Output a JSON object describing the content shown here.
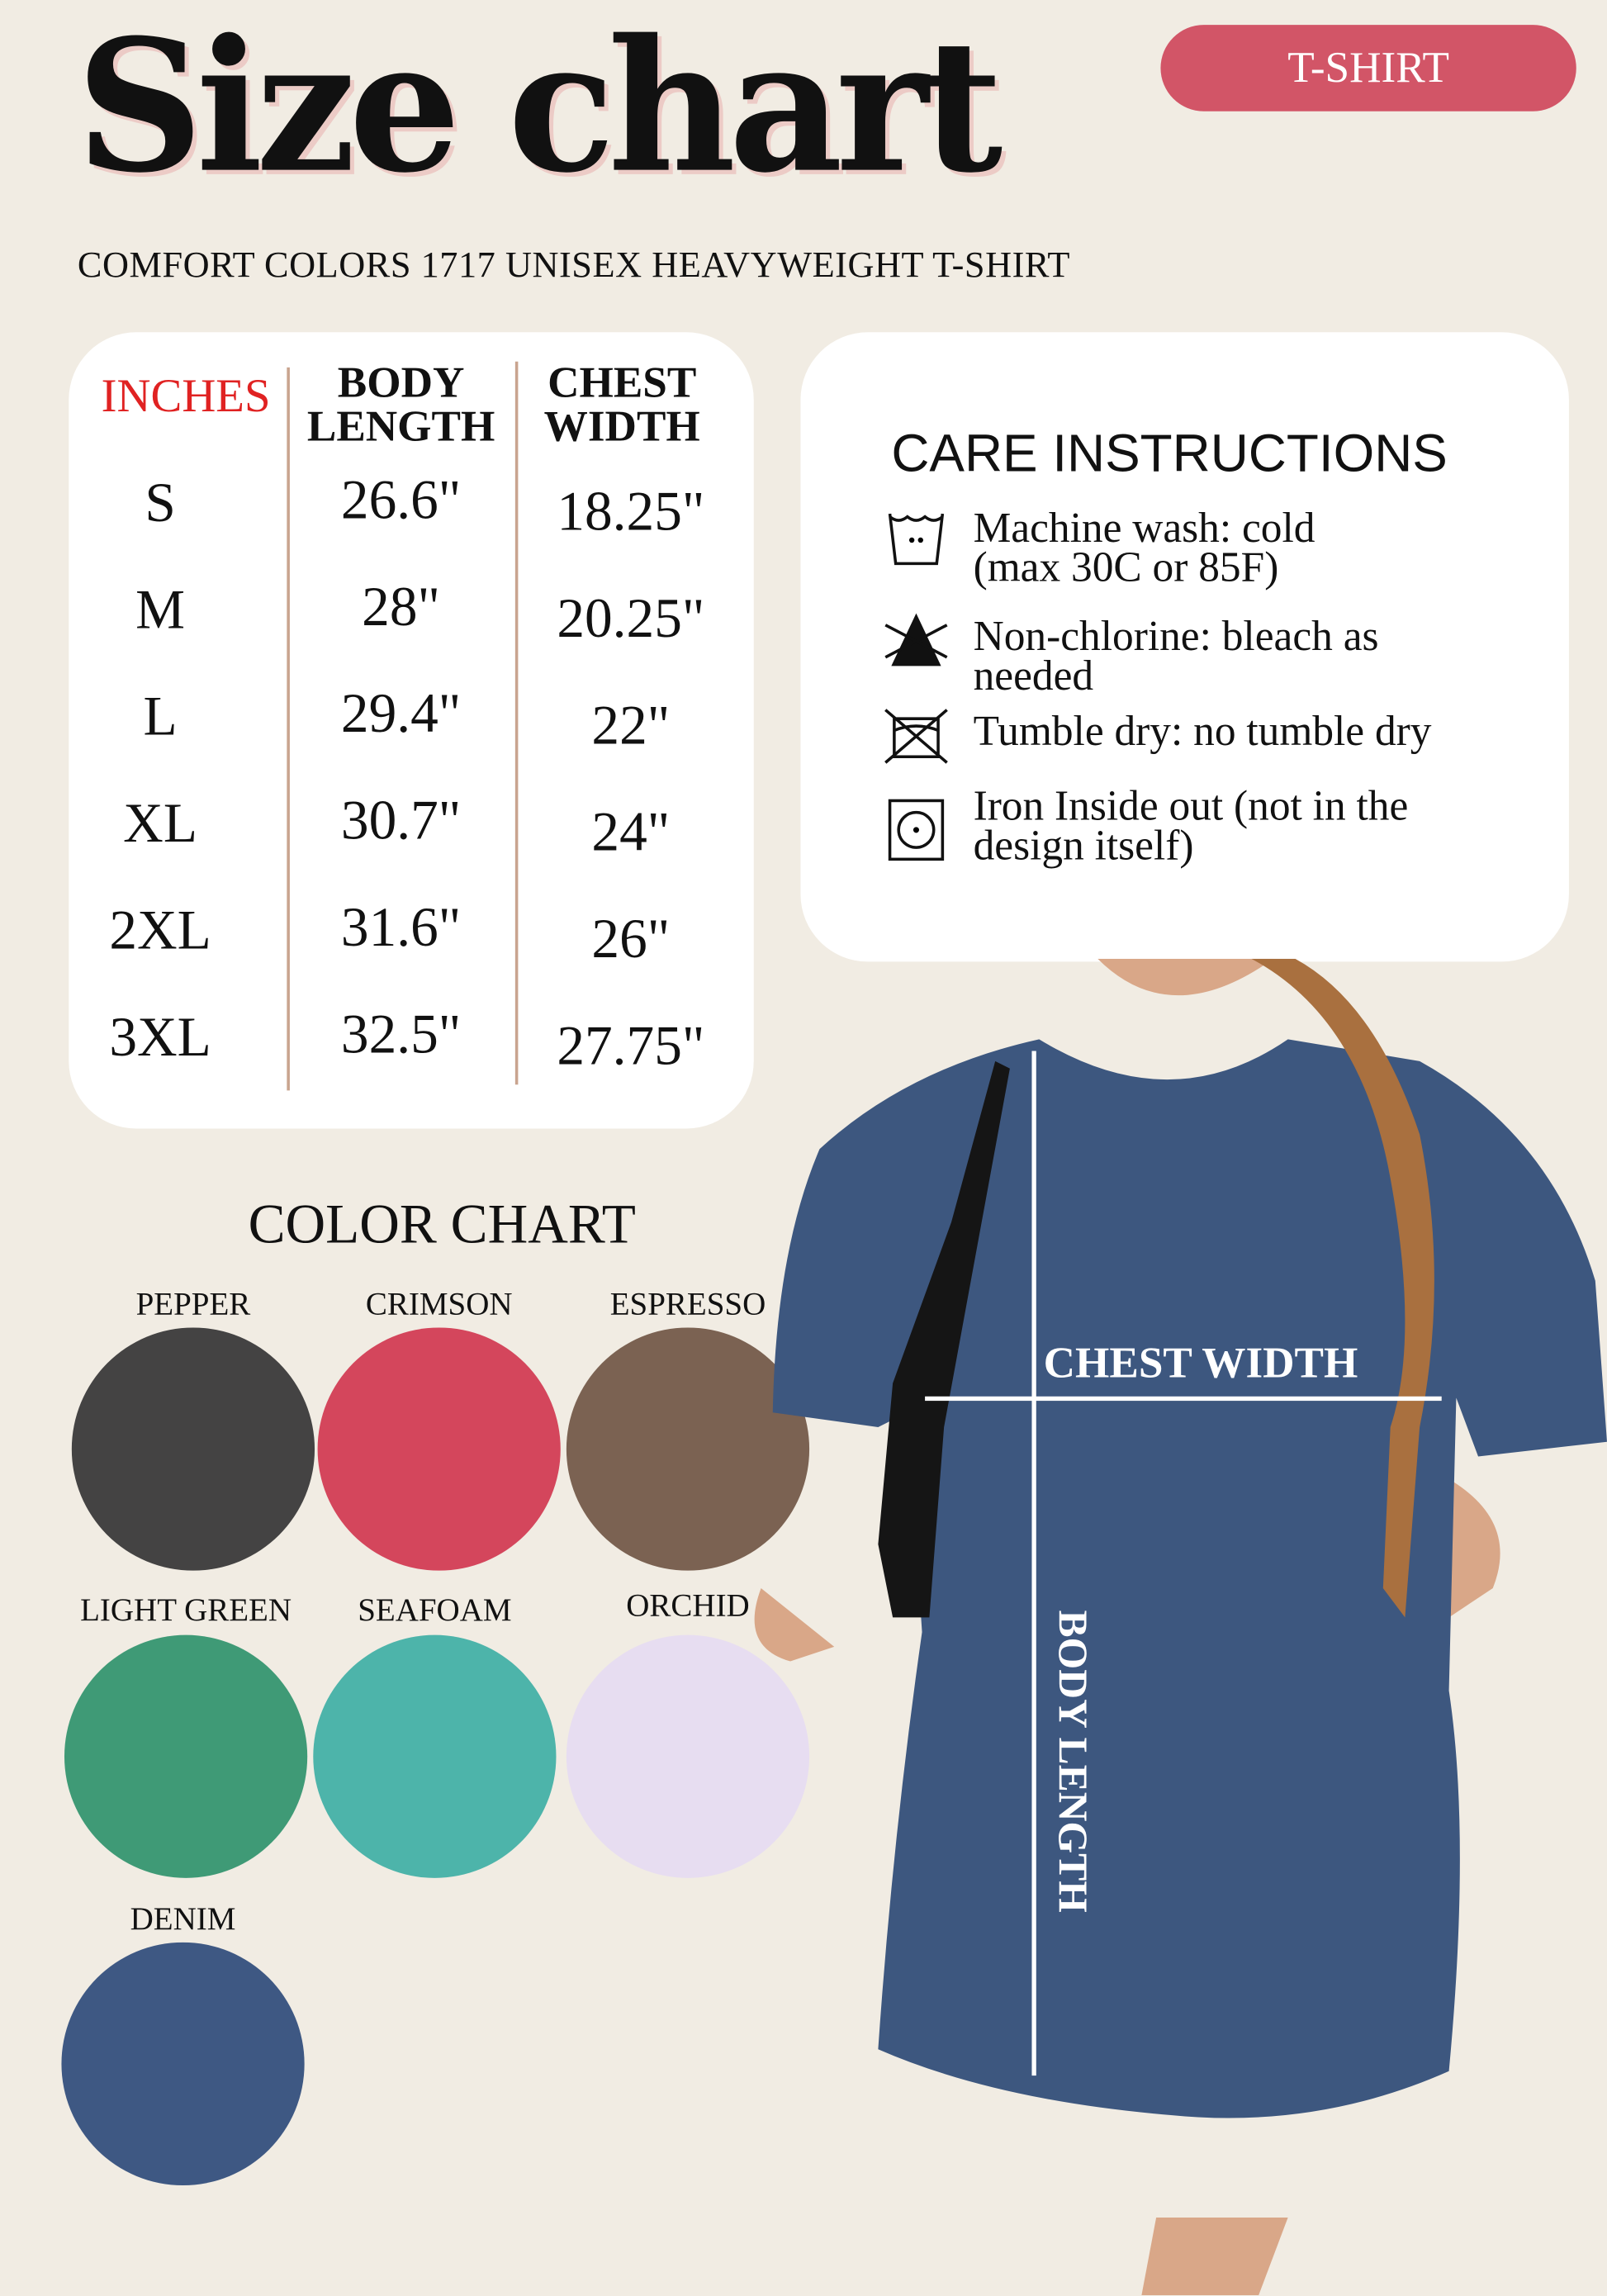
{
  "header": {
    "title": "Size chart",
    "badge": "T-SHIRT",
    "subtitle": "COMFORT COLORS 1717 UNISEX HEAVYWEIGHT T-SHIRT"
  },
  "size_table": {
    "unit_label": "INCHES",
    "columns": [
      "BODY LENGTH",
      "CHEST WIDTH"
    ],
    "col_body_1": "BODY",
    "col_body_2": "LENGTH",
    "col_chest_1": "CHEST",
    "col_chest_2": "WIDTH",
    "rows": [
      {
        "size": "S",
        "body_length": "26.6\"",
        "chest_width": "18.25\""
      },
      {
        "size": "M",
        "body_length": "28\"",
        "chest_width": "20.25\""
      },
      {
        "size": "L",
        "body_length": "29.4\"",
        "chest_width": "22\""
      },
      {
        "size": "XL",
        "body_length": "30.7\"",
        "chest_width": "24\""
      },
      {
        "size": "2XL",
        "body_length": "31.6\"",
        "chest_width": "26\""
      },
      {
        "size": "3XL",
        "body_length": "32.5\"",
        "chest_width": "27.75\""
      }
    ]
  },
  "care": {
    "title": "CARE INSTRUCTIONS",
    "items": [
      {
        "icon": "machine-wash-cold-icon",
        "line1": "Machine wash: cold",
        "line2": "(max 30C or 85F)"
      },
      {
        "icon": "non-chlorine-bleach-icon",
        "line1": "Non-chlorine: bleach as",
        "line2": "needed"
      },
      {
        "icon": "no-tumble-dry-icon",
        "line1": "Tumble dry: no tumble dry",
        "line2": ""
      },
      {
        "icon": "iron-icon",
        "line1": "Iron Inside out (not in the",
        "line2": "design itself)"
      }
    ]
  },
  "colors": {
    "title": "COLOR CHART",
    "swatches": [
      {
        "name": "PEPPER",
        "hex": "#444343"
      },
      {
        "name": "CRIMSON",
        "hex": "#d4465c"
      },
      {
        "name": "ESPRESSO",
        "hex": "#7b6252"
      },
      {
        "name": "LIGHT GREEN",
        "hex": "#3f9a76"
      },
      {
        "name": "SEAFOAM",
        "hex": "#4db4aa"
      },
      {
        "name": "ORCHID",
        "hex": "#e7ddf1"
      },
      {
        "name": "DENIM",
        "hex": "#3e5883"
      }
    ]
  },
  "photo": {
    "chest_label": "CHEST WIDTH",
    "length_label": "BODY LENGTH",
    "shirt_color": "#3d577f"
  },
  "theme": {
    "background": "#f1ece3",
    "accent": "#d25567",
    "inches_color": "#e02222"
  }
}
